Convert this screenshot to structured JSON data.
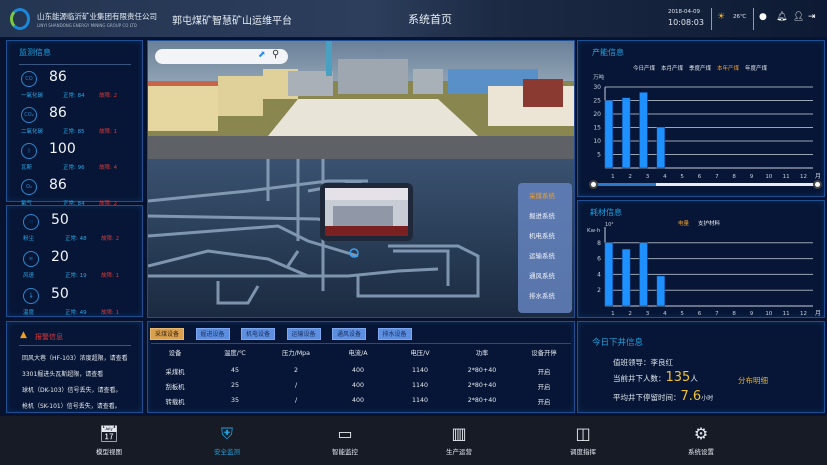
{
  "header": {
    "company_cn": "山东能源临沂矿业集团有限责任公司",
    "company_en": "LINYI SHANDONG ENERGY MINING GROUP CO LTD",
    "platform": "郭屯煤矿智慧矿山运维平台",
    "page_title": "系统首页",
    "date": "2018-04-09",
    "time": "10:08:03",
    "weather_icon": "sun-icon",
    "temperature": "26℃"
  },
  "monitor": {
    "title": "监测信息",
    "gas": [
      {
        "icon": "CO",
        "value": "86",
        "name": "一氧化碳",
        "normal": "正常: 84",
        "fault": "故障: 2"
      },
      {
        "icon": "CO₂",
        "value": "86",
        "name": "二氧化碳",
        "normal": "正常: 85",
        "fault": "故障: 1"
      },
      {
        "icon": "◊",
        "value": "100",
        "name": "瓦斯",
        "normal": "正常: 96",
        "fault": "故障: 4"
      },
      {
        "icon": "O₂",
        "value": "86",
        "name": "氧气",
        "normal": "正常: 84",
        "fault": "故障: 2"
      }
    ],
    "env": [
      {
        "icon": "∷",
        "value": "50",
        "name": "粉尘",
        "normal": "正常: 48",
        "fault": "故障: 2"
      },
      {
        "icon": "≋",
        "value": "20",
        "name": "风速",
        "normal": "正常: 19",
        "fault": "故障: 1"
      },
      {
        "icon": "🌡",
        "value": "50",
        "name": "温度",
        "normal": "正常: 49",
        "fault": "故障: 1"
      }
    ]
  },
  "alarm": {
    "title": "报警信息",
    "lines": [
      "回风大巷（HF-103）浓度超限，请查看",
      "3301掘进头瓦斯超限，请查看",
      "球机（DK-103）信号丢失，请查看。",
      "枪机（SK-101）信号丢失，请查看。"
    ]
  },
  "scene": {
    "search_placeholder": "",
    "systems": [
      "采煤系统",
      "掘进系统",
      "机电系统",
      "运输系统",
      "通风系统",
      "排水系统"
    ],
    "active_system": "采煤系统"
  },
  "equipment": {
    "tabs": [
      "采煤设备",
      "掘进设备",
      "机电设备",
      "运输设备",
      "通风设备",
      "排水设备"
    ],
    "active_tab": "采煤设备",
    "columns": [
      "设备",
      "温度/℃",
      "压力/Mpa",
      "电流/A",
      "电压/V",
      "功率",
      "设备开停"
    ],
    "rows": [
      [
        "采煤机",
        "45",
        "2",
        "400",
        "1140",
        "2*80+40",
        "开启"
      ],
      [
        "刮板机",
        "25",
        "/",
        "400",
        "1140",
        "2*80+40",
        "开启"
      ],
      [
        "转载机",
        "35",
        "/",
        "400",
        "1140",
        "2*80+40",
        "开启"
      ]
    ]
  },
  "production": {
    "title": "产能信息",
    "legend": [
      "今日产煤",
      "本月产煤",
      "季度产煤",
      "本年产煤",
      "年度产煤"
    ],
    "active_legend": "本年产煤",
    "slider_value": [
      1,
      12
    ]
  },
  "consumption": {
    "title": "耗材信息",
    "legend": [
      "电量",
      "支护材料"
    ],
    "active_legend": "电量",
    "unit_exp": "10⁴"
  },
  "chart_data": [
    {
      "type": "bar",
      "ylabel": "万吨",
      "xlabel": "月",
      "categories": [
        "1",
        "2",
        "3",
        "4",
        "5",
        "6",
        "7",
        "8",
        "9",
        "10",
        "11",
        "12"
      ],
      "values": [
        25,
        26,
        28,
        15,
        null,
        null,
        null,
        null,
        null,
        null,
        null,
        null
      ],
      "ylim": [
        0,
        30
      ],
      "yticks": [
        5,
        10,
        15,
        20,
        25,
        30
      ],
      "grid": true,
      "color": "#1e90ff"
    },
    {
      "type": "bar",
      "ylabel": "Kw·h",
      "xlabel": "月",
      "categories": [
        "1",
        "2",
        "3",
        "4",
        "5",
        "6",
        "7",
        "8",
        "9",
        "10",
        "11",
        "12"
      ],
      "values": [
        8,
        7.2,
        8,
        3.8,
        null,
        null,
        null,
        null,
        null,
        null,
        null,
        null
      ],
      "ylim": [
        0,
        10
      ],
      "yticks": [
        2,
        4,
        6,
        8
      ],
      "grid": true,
      "color": "#1e90ff"
    }
  ],
  "downhole": {
    "title": "今日下井信息",
    "leader_label": "值班领导：",
    "leader": "李良红",
    "count_label": "当前井下人数：",
    "count": "135",
    "count_unit": "人",
    "detail_link": "分布明细",
    "avg_label": "平均井下停留时间：",
    "avg": "7.6",
    "avg_unit": "小时"
  },
  "nav": [
    {
      "label": "模型视图",
      "icon": "calendar-chart-icon"
    },
    {
      "label": "安全监测",
      "icon": "shield-icon",
      "active": true
    },
    {
      "label": "智能监控",
      "icon": "monitor-icon"
    },
    {
      "label": "生产运营",
      "icon": "building-icon"
    },
    {
      "label": "调度指挥",
      "icon": "layout-icon"
    },
    {
      "label": "系统设置",
      "icon": "gear-icon"
    }
  ],
  "colors": {
    "accent": "#1ea3e0",
    "fault": "#d23a3a",
    "highlight": "#f0a030",
    "bar": "#1e90ff",
    "panel_border": "#1e4f92"
  }
}
